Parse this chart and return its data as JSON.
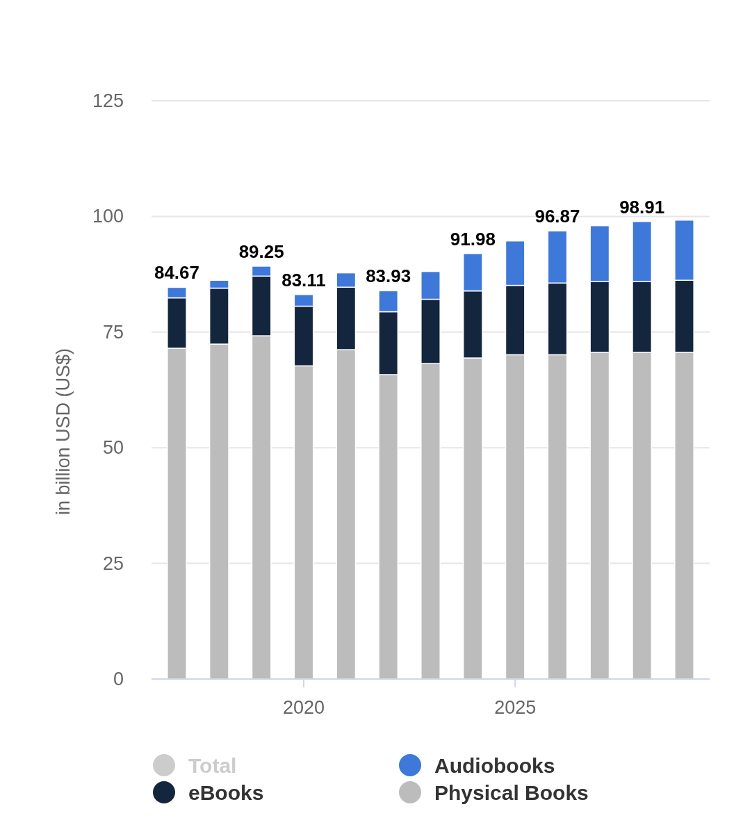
{
  "chart_data": {
    "type": "bar",
    "stacked": true,
    "ylabel": "in billion USD (US$)",
    "x": [
      2017,
      2018,
      2019,
      2020,
      2021,
      2022,
      2023,
      2024,
      2025,
      2026,
      2027,
      2028,
      2029
    ],
    "xlim": [
      2016.4,
      2029.6
    ],
    "xticks": [
      2020,
      2025
    ],
    "ylim": [
      0,
      125
    ],
    "yticks": [
      0,
      25,
      50,
      75,
      100,
      125
    ],
    "grid": "y",
    "legend": "bottom",
    "series": [
      {
        "name": "Physical Books",
        "color": "#bcbcbc",
        "values": [
          71.5,
          72.4,
          74.2,
          67.7,
          71.2,
          65.8,
          68.2,
          69.4,
          70.1,
          70.1,
          70.6,
          70.6,
          70.6
        ]
      },
      {
        "name": "eBooks",
        "color": "#14263d",
        "values": [
          10.9,
          12.1,
          12.9,
          12.9,
          13.5,
          13.6,
          13.9,
          14.5,
          15.0,
          15.5,
          15.3,
          15.3,
          15.6
        ]
      },
      {
        "name": "Audiobooks",
        "color": "#3e78d9",
        "values": [
          2.27,
          1.7,
          2.15,
          2.51,
          3.1,
          4.53,
          6.0,
          8.08,
          9.6,
          11.27,
          12.1,
          13.01,
          13.0
        ]
      },
      {
        "name": "Total",
        "color": "#cccccc",
        "values": [
          null,
          null,
          null,
          null,
          null,
          null,
          null,
          null,
          null,
          null,
          null,
          null,
          null
        ]
      }
    ],
    "totals": [
      "84.67",
      null,
      "89.25",
      "83.11",
      null,
      "83.93",
      null,
      "91.98",
      null,
      "96.87",
      null,
      "98.91",
      null
    ]
  }
}
